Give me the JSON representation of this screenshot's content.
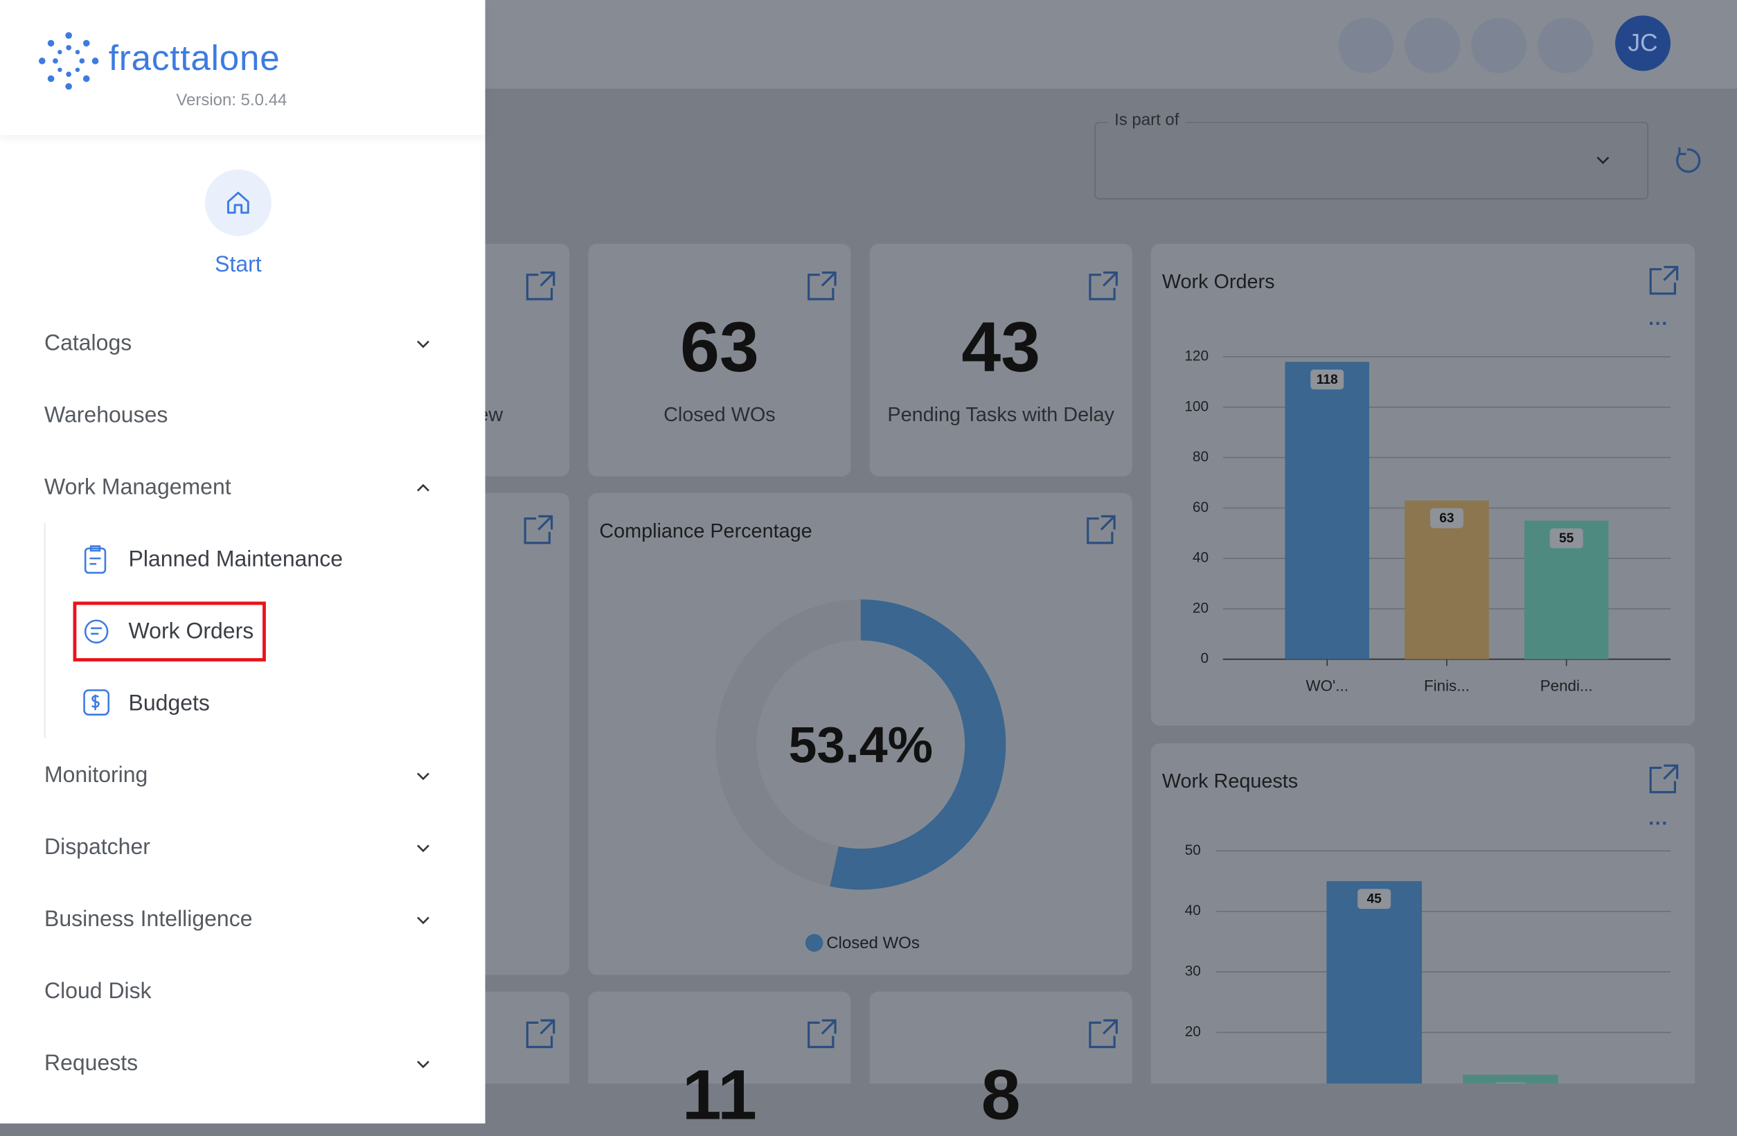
{
  "sidebar": {
    "logo": "fracttalone",
    "version": "Version: 5.0.44",
    "start": "Start",
    "menu": [
      "Catalogs",
      "Warehouses",
      "Work Management",
      "Monitoring",
      "Dispatcher",
      "Business Intelligence",
      "Cloud Disk",
      "Requests"
    ],
    "submenu": [
      "Planned Maintenance",
      "Work Orders",
      "Budgets"
    ]
  },
  "header": {
    "avatar": "JC"
  },
  "filter": {
    "label": "Is part of"
  },
  "kpis": [
    {
      "label": "ew"
    },
    {
      "value": 63,
      "label": "Closed WOs"
    },
    {
      "value": 43,
      "label": "Pending Tasks with Delay"
    },
    {
      "value": 11
    },
    {
      "value": 8
    }
  ],
  "chart_data": [
    {
      "type": "bar",
      "title": "Work Orders",
      "categories": [
        "WO'...",
        "Finis...",
        "Pendi..."
      ],
      "values": [
        118,
        63,
        55
      ],
      "colors": [
        "#3a6690",
        "#8c7650",
        "#4f8a80"
      ],
      "ylim": [
        0,
        120
      ],
      "yticks": [
        0,
        20,
        40,
        60,
        80,
        100,
        120
      ],
      "grid": true
    },
    {
      "type": "bar",
      "title": "Work Requests",
      "categories": [
        null,
        null
      ],
      "values": [
        45,
        13
      ],
      "colors": [
        "#3a6690",
        "#4f8a80"
      ],
      "ylim": [
        0,
        50
      ],
      "yticks": [
        20,
        30,
        40,
        50
      ],
      "grid": true
    },
    {
      "type": "pie",
      "title": "Compliance Percentage",
      "values": [
        53.4
      ],
      "value_labels": [
        "53.4%"
      ],
      "legend": [
        "Closed WOs"
      ],
      "color": "#3a6690",
      "rest_color": "#7f838b"
    }
  ]
}
